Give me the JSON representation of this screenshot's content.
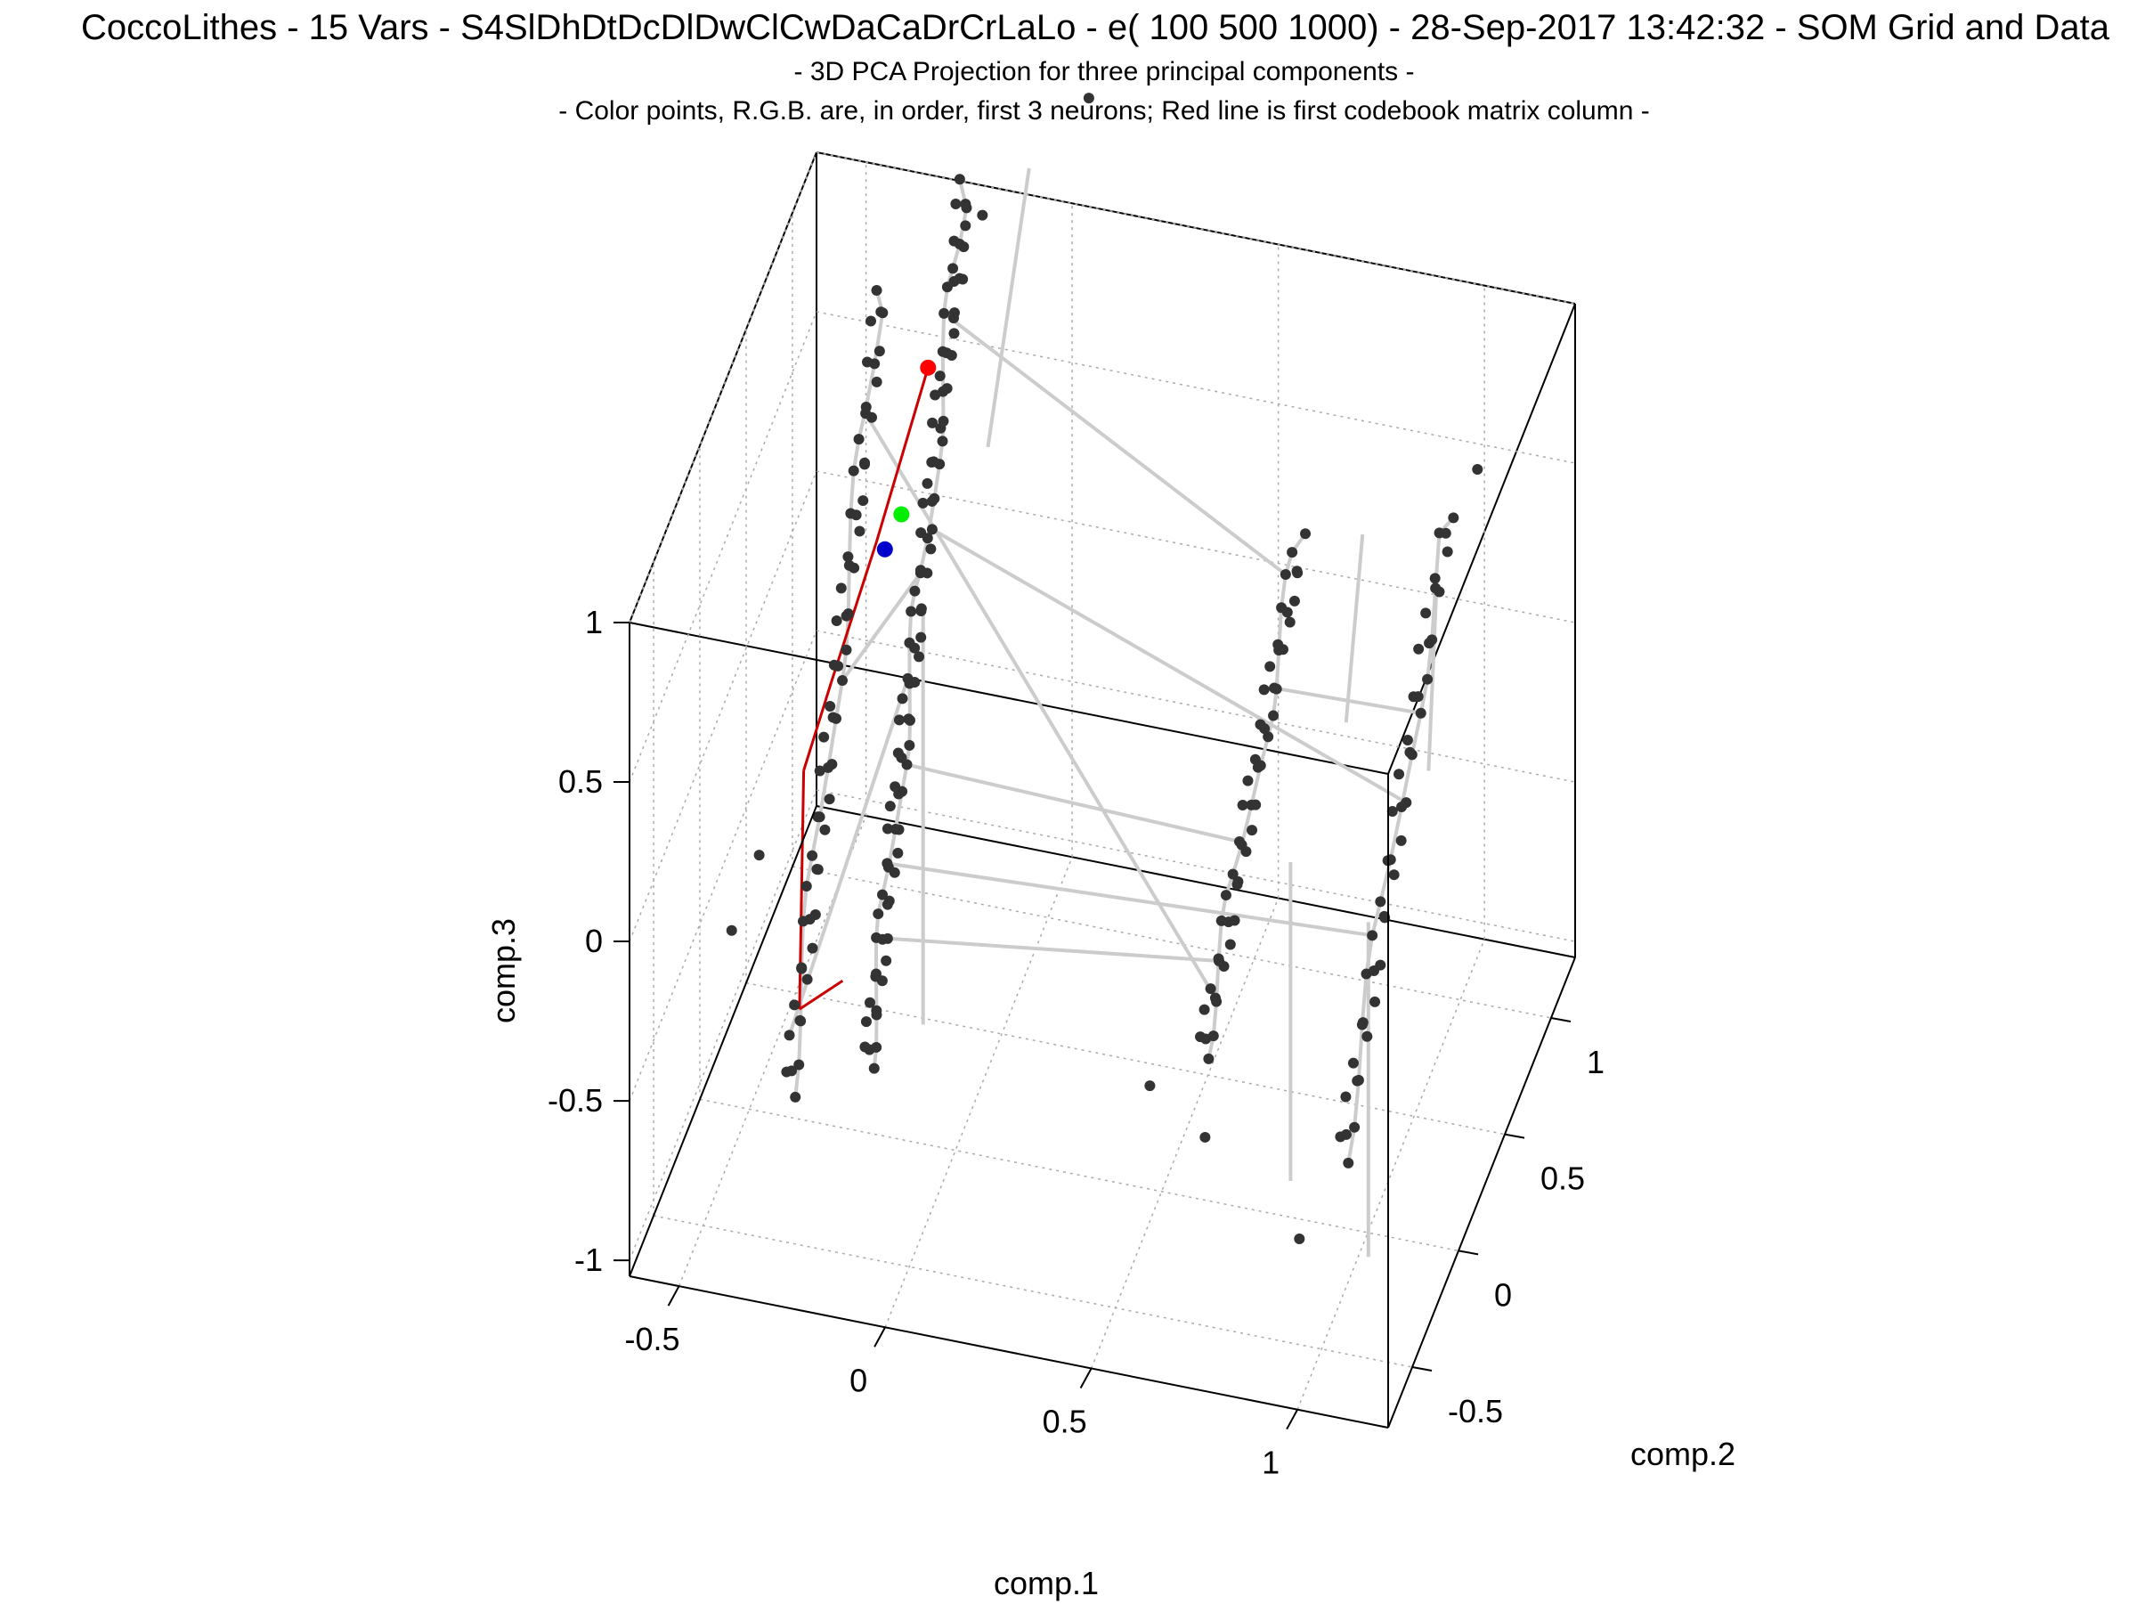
{
  "chart_data": {
    "type": "scatter",
    "title": "CoccoLithes - 15 Vars - S4SlDhDtDcDlDwClCwDaCaDrCrLaLo - e( 100 500 1000) - 28-Sep-2017 13:42:32 - SOM Grid and Data",
    "subtitle": "- 3D PCA Projection for three principal components -",
    "subtitle2": "- Color points, R.G.B. are, in order, first 3 neurons; Red line is first codebook matrix column -",
    "xlabel": "comp.1",
    "ylabel": "comp.2",
    "zlabel": "comp.3",
    "xlim": [
      -0.62,
      1.22
    ],
    "ylim": [
      -0.76,
      1.26
    ],
    "zlim": [
      -1.05,
      1.0
    ],
    "xticks": [
      "-0.5",
      "0",
      "0.5",
      "1"
    ],
    "yticks": [
      "-0.5",
      "0",
      "0.5",
      "1"
    ],
    "zticks": [
      "1",
      "0.5",
      "0",
      "-0.5",
      "-1"
    ],
    "grid": true,
    "colors": {
      "points": "#333333",
      "grid_lines": "#cccccc",
      "codebook_line": "#cc0000",
      "neuron_1": "#ff0000",
      "neuron_2": "#00ee00",
      "neuron_3": "#0000cc"
    },
    "highlighted_neurons": [
      {
        "color": "#ff0000",
        "x": -0.08,
        "y": 0.06,
        "z": 1.34
      },
      {
        "color": "#00ee00",
        "x": -0.12,
        "y": -0.05,
        "z": 0.95
      },
      {
        "color": "#0000cc",
        "x": -0.16,
        "y": -0.05,
        "z": 0.83
      }
    ],
    "codebook_line": [
      [
        -0.08,
        0.06,
        1.34
      ],
      [
        -0.18,
        -0.05,
        0.85
      ],
      [
        -0.27,
        -0.14,
        0.45
      ],
      [
        -0.33,
        -0.17,
        0.18
      ],
      [
        -0.32,
        -0.26,
        -0.5
      ],
      [
        -0.22,
        -0.24,
        -0.4
      ]
    ],
    "lines": [
      {
        "x1": 0.0,
        "z1": -0.4,
        "x2": 0.0,
        "z2": 0.9,
        "y": -0.35
      },
      {
        "x1": 0.0,
        "z1": 0.9,
        "x2": 0.1,
        "z2": 1.8,
        "y": 0.35
      },
      {
        "x1": 0.88,
        "z1": -0.7,
        "x2": 0.88,
        "z2": 0.3,
        "y": -0.3
      },
      {
        "x1": 0.88,
        "z1": 0.3,
        "x2": 0.92,
        "z2": 0.9,
        "y": 0.3
      },
      {
        "x1": 1.08,
        "z1": -0.85,
        "x2": 1.08,
        "z2": 0.2,
        "y": -0.35
      },
      {
        "x1": 1.08,
        "z1": 0.2,
        "x2": 1.1,
        "z2": 0.8,
        "y": 0.3
      }
    ],
    "strands": [
      {
        "x": -0.28,
        "y": [
          -0.55,
          0.45
        ],
        "z": [
          -0.55,
          1.25
        ],
        "n": 60
      },
      {
        "x": -0.1,
        "y": [
          -0.5,
          0.55
        ],
        "z": [
          -0.45,
          1.55
        ],
        "n": 90
      },
      {
        "x": 0.7,
        "y": [
          -0.45,
          0.6
        ],
        "z": [
          -0.25,
          0.6
        ],
        "n": 50
      },
      {
        "x": 1.05,
        "y": [
          -0.5,
          0.65
        ],
        "z": [
          -0.45,
          0.75
        ],
        "n": 45
      }
    ],
    "edges": [
      [
        0,
        4,
        1,
        40
      ],
      [
        1,
        12,
        2,
        10
      ],
      [
        1,
        30,
        2,
        20
      ],
      [
        1,
        55,
        3,
        25
      ],
      [
        0,
        30,
        1,
        50
      ],
      [
        2,
        35,
        3,
        30
      ],
      [
        1,
        75,
        2,
        45
      ],
      [
        0,
        50,
        2,
        5
      ],
      [
        1,
        20,
        3,
        15
      ]
    ],
    "outliers": [
      [
        -0.48,
        -0.28,
        -0.28
      ],
      [
        -0.42,
        -0.25,
        -0.05
      ],
      [
        -0.05,
        0.3,
        1.45
      ],
      [
        -0.02,
        0.38,
        1.6
      ],
      [
        0.2,
        0.55,
        1.9
      ],
      [
        0.55,
        -0.35,
        -0.45
      ],
      [
        0.74,
        -0.6,
        -0.38
      ],
      [
        0.98,
        -0.65,
        -0.6
      ],
      [
        1.12,
        0.65,
        0.9
      ]
    ]
  }
}
